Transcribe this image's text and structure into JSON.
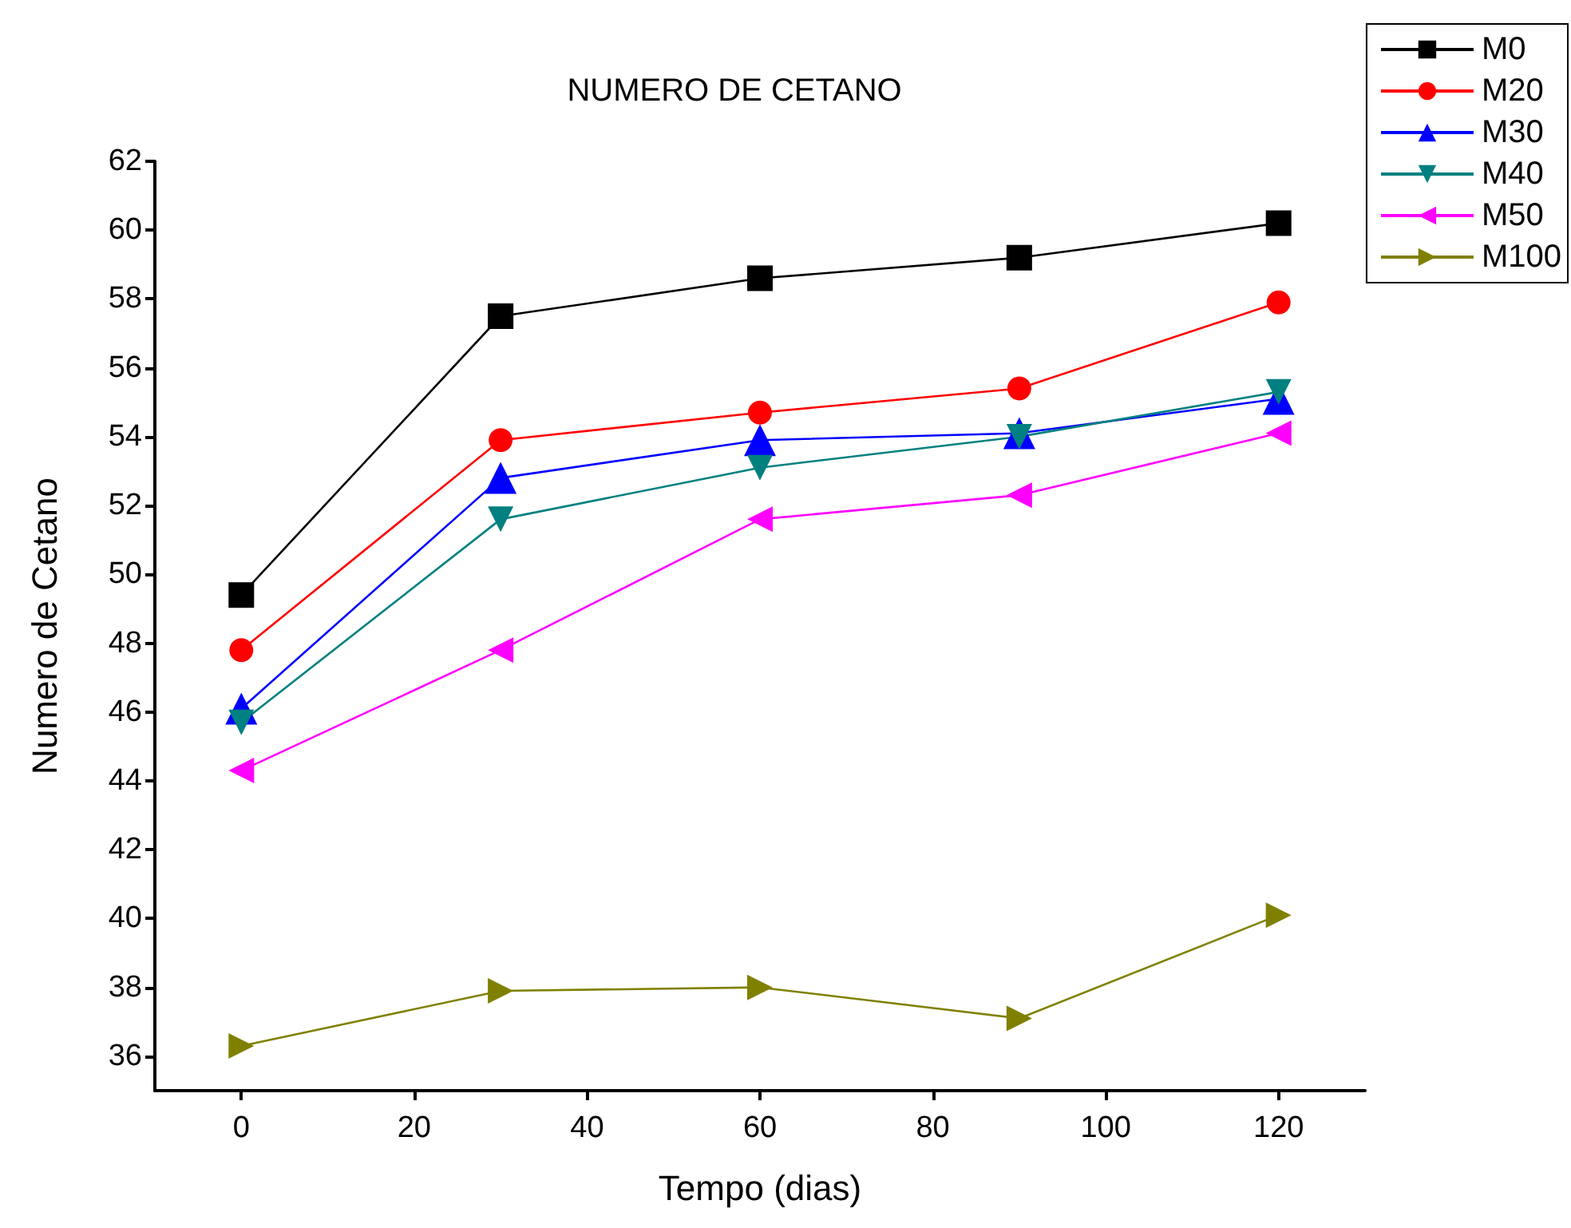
{
  "chart_data": {
    "type": "line",
    "title": "NUMERO DE CETANO",
    "xlabel": "Tempo (dias)",
    "ylabel": "Numero de Cetano",
    "x": [
      0,
      30,
      60,
      90,
      120
    ],
    "xlim": [
      -10,
      130
    ],
    "xticks": [
      0,
      20,
      40,
      60,
      80,
      100,
      120
    ],
    "ylim": [
      35,
      62
    ],
    "yticks": [
      36,
      38,
      40,
      42,
      44,
      46,
      48,
      50,
      52,
      54,
      56,
      58,
      60,
      62
    ],
    "legend": "top right",
    "grid": false,
    "series": [
      {
        "name": "M0",
        "color": "#000000",
        "marker": "square",
        "values": [
          49.4,
          57.5,
          58.6,
          59.2,
          60.2
        ]
      },
      {
        "name": "M20",
        "color": "#ff0000",
        "marker": "circle",
        "values": [
          47.8,
          53.9,
          54.7,
          55.4,
          57.9
        ]
      },
      {
        "name": "M30",
        "color": "#0000ff",
        "marker": "triangle",
        "values": [
          46.1,
          52.8,
          53.9,
          54.1,
          55.1
        ]
      },
      {
        "name": "M40",
        "color": "#008080",
        "marker": "triangle-down",
        "values": [
          45.7,
          51.6,
          53.1,
          54.0,
          55.3
        ]
      },
      {
        "name": "M50",
        "color": "#ff00ff",
        "marker": "triangle-left",
        "values": [
          44.3,
          47.8,
          51.6,
          52.3,
          54.1
        ]
      },
      {
        "name": "M100",
        "color": "#808000",
        "marker": "triangle-right",
        "values": [
          36.3,
          37.9,
          38.0,
          37.1,
          40.1
        ]
      }
    ]
  }
}
